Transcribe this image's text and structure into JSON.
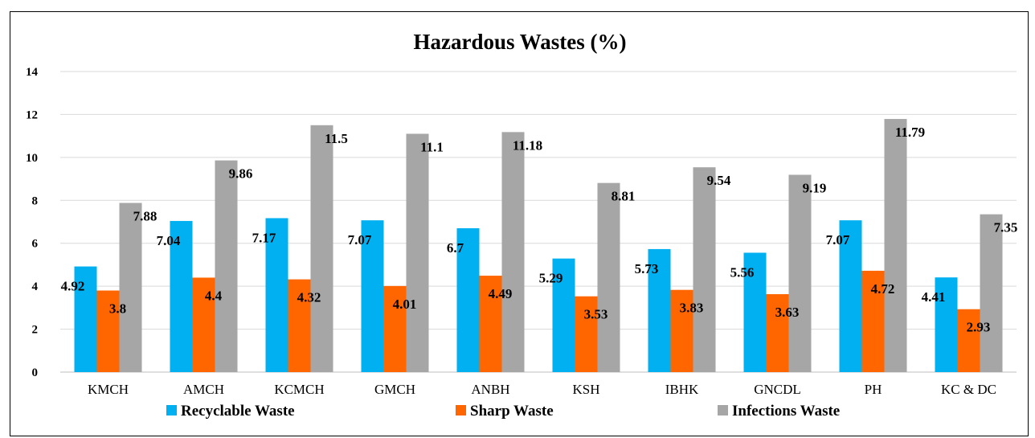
{
  "chart_data": {
    "type": "bar",
    "title": "Hazardous Wastes (%)",
    "xlabel": "",
    "ylabel": "",
    "ylim": [
      0,
      14
    ],
    "yticks": [
      0,
      2,
      4,
      6,
      8,
      10,
      12,
      14
    ],
    "grid": true,
    "legend_position": "bottom",
    "categories": [
      "KMCH",
      "AMCH",
      "KCMCH",
      "GMCH",
      "ANBH",
      "KSH",
      "IBHK",
      "GNCDL",
      "PH",
      "KC & DC"
    ],
    "series": [
      {
        "name": "Recyclable Waste",
        "color": "#00B0F0",
        "values": [
          4.92,
          7.04,
          7.17,
          7.07,
          6.7,
          5.29,
          5.73,
          5.56,
          7.07,
          4.41
        ]
      },
      {
        "name": "Sharp Waste",
        "color": "#FF6600",
        "values": [
          3.8,
          4.4,
          4.32,
          4.01,
          4.49,
          3.53,
          3.83,
          3.63,
          4.72,
          2.93
        ]
      },
      {
        "name": "Infections Waste",
        "color": "#A6A6A6",
        "values": [
          7.88,
          9.86,
          11.5,
          11.1,
          11.18,
          8.81,
          9.54,
          9.19,
          11.79,
          7.35
        ]
      }
    ]
  }
}
